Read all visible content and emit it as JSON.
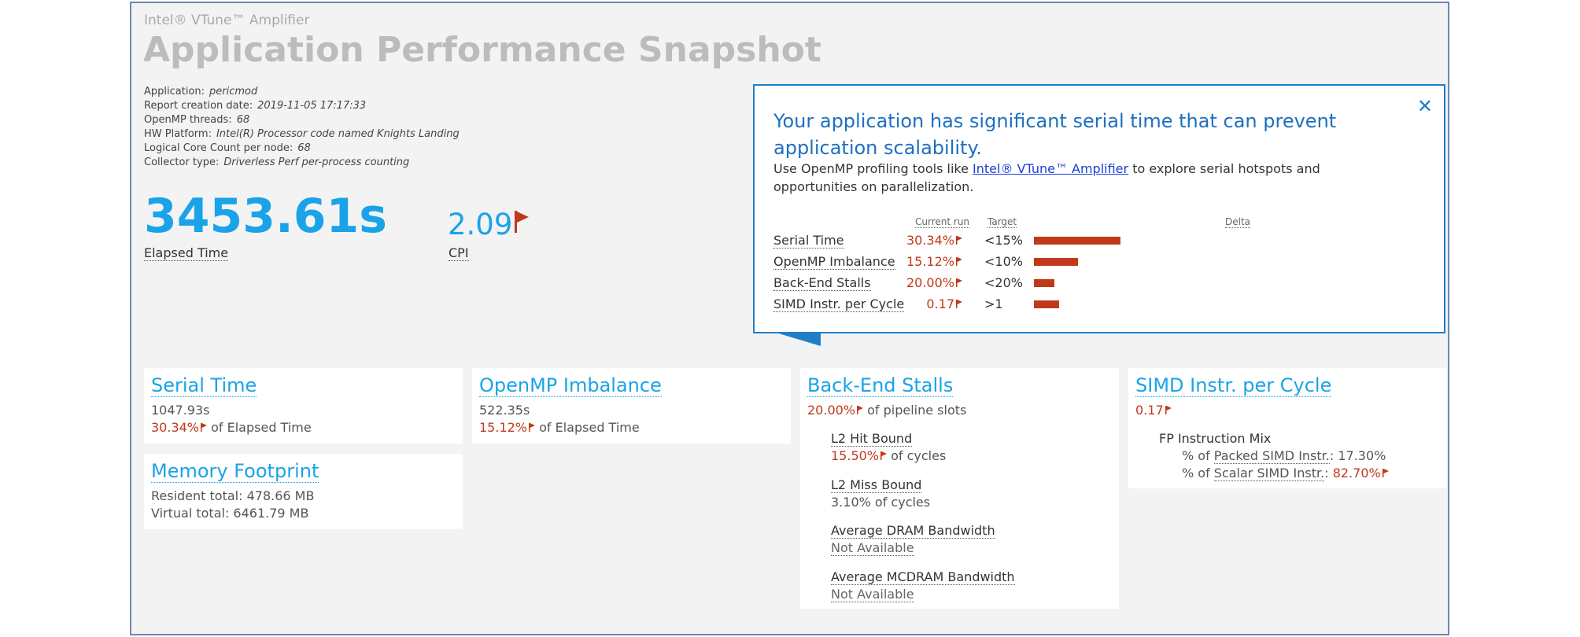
{
  "app": {
    "brand": "Intel® VTune™ Amplifier",
    "title": "Application Performance Snapshot"
  },
  "meta": [
    {
      "label": "Application:",
      "value": "pericmod"
    },
    {
      "label": "Report creation date:",
      "value": "2019-11-05 17:17:33"
    },
    {
      "label": "OpenMP threads:",
      "value": "68"
    },
    {
      "label": "HW Platform:",
      "value": "Intel(R) Processor code named Knights Landing"
    },
    {
      "label": "Logical Core Count per node:",
      "value": "68"
    },
    {
      "label": "Collector type:",
      "value": "Driverless Perf per-process counting"
    }
  ],
  "elapsed": {
    "value": "3453.61s",
    "label": "Elapsed Time"
  },
  "cpi": {
    "value": "2.09",
    "label": "CPI",
    "flag_icon": "red-flag-icon"
  },
  "popup": {
    "heading": "Your application has significant serial time that can prevent application scalability.",
    "body_pre": "Use OpenMP profiling tools like ",
    "body_link": "Intel® VTune™ Amplifier",
    "body_post": " to explore serial hotspots and opportunities on parallelization.",
    "col_current": "Current run",
    "col_target": "Target",
    "col_delta": "Delta",
    "close_icon": "close-icon",
    "rows": [
      {
        "name": "Serial Time",
        "current": "30.34%",
        "target": "<15%",
        "delta": 0.55
      },
      {
        "name": "OpenMP Imbalance",
        "current": "15.12%",
        "target": "<10%",
        "delta": 0.28
      },
      {
        "name": "Back-End Stalls",
        "current": "20.00%",
        "target": "<20%",
        "delta": 0.13
      },
      {
        "name": "SIMD Instr. per Cycle",
        "current": "0.17",
        "target": ">1",
        "delta": 0.16
      }
    ]
  },
  "cards": {
    "serial": {
      "title": "Serial Time",
      "time": "1047.93s",
      "pct": "30.34%",
      "pct_suffix": "of Elapsed Time"
    },
    "memory": {
      "title": "Memory Footprint",
      "resident": "Resident total: 478.66 MB",
      "virtual": "Virtual total: 6461.79 MB"
    },
    "openmp": {
      "title": "OpenMP Imbalance",
      "time": "522.35s",
      "pct": "15.12%",
      "pct_suffix": "of Elapsed Time"
    },
    "backend": {
      "title": "Back-End Stalls",
      "pct": "20.00%",
      "pct_suffix": "of pipeline slots",
      "l2hit_label": "L2 Hit Bound",
      "l2hit_pct": "15.50%",
      "l2hit_suffix": "of cycles",
      "l2miss_label": "L2 Miss Bound",
      "l2miss_value": "3.10% of cycles",
      "dram_label": "Average DRAM Bandwidth",
      "dram_value": "Not Available",
      "mcdram_label": "Average MCDRAM Bandwidth",
      "mcdram_value": "Not Available"
    },
    "simd": {
      "title": "SIMD Instr. per Cycle",
      "value": "0.17",
      "mix_label": "FP Instruction Mix",
      "packed_pre": "% of ",
      "packed_label": "Packed SIMD Instr.",
      "packed_value": ": 17.30%",
      "scalar_pre": "% of ",
      "scalar_label": "Scalar SIMD Instr.",
      "scalar_value": "82.70%"
    }
  },
  "colors": {
    "accent": "#1aa3e8",
    "flag": "#c0391b",
    "popup_border": "#1e7fc9"
  }
}
